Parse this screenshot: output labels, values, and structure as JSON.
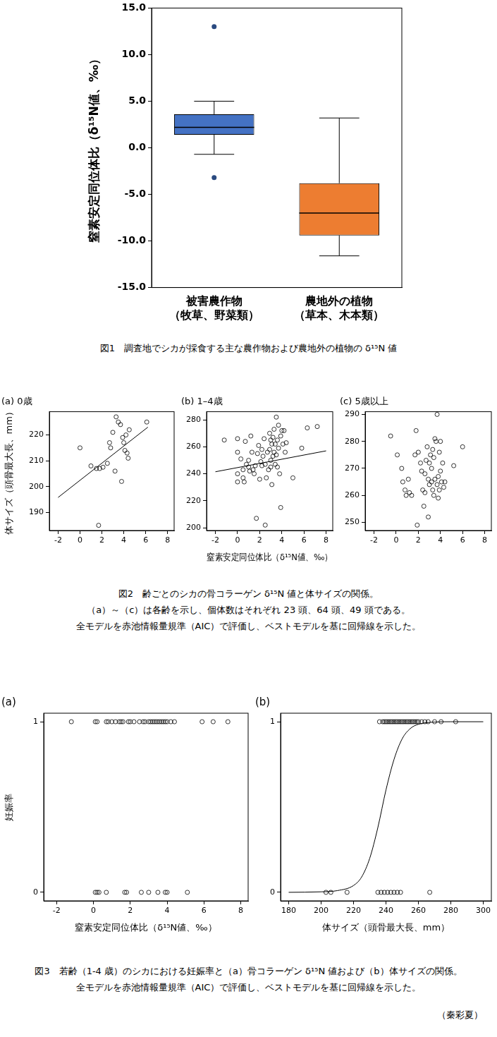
{
  "chart_data": [
    {
      "type": "box",
      "ylabel": "窒素安定同位体比（δ¹⁵N値、‰）",
      "categories": [
        [
          "被害農作物",
          "（牧草、野菜類）"
        ],
        [
          "農地外の植物",
          "（草本、木本類）"
        ]
      ],
      "boxes": [
        {
          "whislo": -0.7,
          "q1": 1.4,
          "median": 2.2,
          "q3": 3.6,
          "whishi": 5.0,
          "fliers": [
            13.0,
            -3.2
          ]
        },
        {
          "whislo": -11.6,
          "q1": -9.4,
          "median": -7.0,
          "q3": -3.8,
          "whishi": 3.2,
          "fliers": []
        }
      ],
      "colors": [
        "#4472c4",
        "#ed7d31"
      ],
      "ylim": [
        -15,
        15
      ],
      "yticks": [
        {
          "value": -15,
          "label": "-15.0"
        },
        {
          "value": -10,
          "label": "-10.0"
        },
        {
          "value": -5,
          "label": "-5.0"
        },
        {
          "value": 0,
          "label": "0.0"
        },
        {
          "value": 5,
          "label": "5.0"
        },
        {
          "value": 10,
          "label": "10.0"
        },
        {
          "value": 15,
          "label": "15.0"
        }
      ],
      "grid": false
    },
    {
      "type": "scatter",
      "title": "(a) 0歳",
      "ylabel": "体サイズ（頭骨最大長、mm）",
      "x": [
        0.0,
        1.0,
        1.5,
        1.7,
        1.8,
        2.1,
        2.5,
        2.7,
        2.8,
        3.0,
        3.2,
        3.3,
        3.5,
        3.7,
        3.8,
        3.9,
        4.0,
        4.1,
        4.2,
        4.3,
        4.4,
        4.5,
        6.1
      ],
      "values": [
        215,
        208,
        207,
        185,
        207,
        207.5,
        209,
        217,
        215,
        221,
        206,
        227,
        225,
        224,
        202,
        219,
        217,
        214,
        220,
        213,
        211,
        222,
        225
      ],
      "fit": {
        "x": [
          -2,
          6.2
        ],
        "values": [
          195.8,
          223.0
        ]
      },
      "color": "#000000",
      "marker": "circle",
      "xlim": [
        -2.8,
        8.6
      ],
      "xticks": [
        -2,
        0,
        2,
        4,
        6,
        8
      ],
      "ylim": [
        183,
        229
      ],
      "yticks": [
        190,
        200,
        210,
        220
      ],
      "grid": false
    },
    {
      "type": "scatter",
      "title": "(b) 1–4歳",
      "xlabel": "窒素安定同位体比（δ¹⁵N値、‰）",
      "x": [
        -1.2,
        0,
        0,
        0,
        0,
        0.3,
        0.5,
        0.5,
        0.6,
        0.7,
        0.8,
        1.0,
        1.0,
        1.1,
        1.2,
        1.3,
        1.4,
        1.5,
        1.6,
        1.7,
        1.8,
        1.9,
        2.0,
        2.1,
        2.2,
        2.3,
        2.4,
        2.5,
        2.5,
        2.6,
        2.7,
        2.8,
        2.9,
        2.9,
        3.0,
        3.0,
        3.1,
        3.1,
        3.2,
        3.2,
        3.3,
        3.3,
        3.4,
        3.4,
        3.5,
        3.5,
        3.6,
        3.6,
        3.7,
        3.7,
        3.8,
        3.9,
        3.9,
        4.0,
        4.1,
        4.2,
        4.3,
        4.4,
        5.0,
        5.8,
        6.3,
        7.2,
        3.0,
        2.2
      ],
      "values": [
        265,
        266,
        256,
        240,
        234,
        251,
        243,
        237,
        234,
        264,
        247,
        250,
        245,
        242,
        268,
        256,
        243,
        240,
        246,
        207,
        255,
        261,
        236,
        249,
        258,
        253,
        266,
        202,
        247,
        237,
        256,
        243,
        258,
        270,
        265,
        250,
        262,
        232,
        253,
        267,
        256,
        273,
        247,
        262,
        282,
        254,
        265,
        245,
        259,
        276,
        240,
        215,
        268,
        272,
        262,
        272,
        256,
        263,
        237,
        259,
        274,
        275,
        245,
        246
      ],
      "fit": {
        "x": [
          -2,
          8
        ],
        "values": [
          241.5,
          257.0
        ]
      },
      "color": "#000000",
      "marker": "circle",
      "xlim": [
        -2.8,
        8.6
      ],
      "xticks": [
        -2,
        0,
        2,
        4,
        6,
        8
      ],
      "ylim": [
        198,
        286
      ],
      "yticks": [
        200,
        220,
        240,
        260,
        280
      ],
      "grid": false
    },
    {
      "type": "scatter",
      "title": "(c) 5歳以上",
      "x": [
        -0.5,
        0.1,
        0.5,
        0.6,
        0.8,
        0.9,
        1.1,
        1.2,
        1.4,
        1.7,
        1.8,
        1.9,
        2.0,
        2.2,
        2.3,
        2.4,
        2.5,
        2.6,
        2.6,
        2.8,
        2.9,
        2.9,
        3.0,
        3.0,
        3.1,
        3.2,
        3.2,
        3.3,
        3.3,
        3.4,
        3.4,
        3.5,
        3.5,
        3.6,
        3.7,
        3.7,
        3.8,
        3.8,
        3.9,
        3.9,
        4.0,
        4.0,
        4.1,
        4.2,
        4.3,
        4.4,
        5.2,
        6.0,
        2.7
      ],
      "values": [
        282,
        275,
        270,
        265,
        262,
        260,
        266,
        261,
        260,
        275,
        284,
        249,
        276,
        272,
        269,
        262,
        256,
        261,
        268,
        278,
        252,
        266,
        264,
        272,
        275,
        265,
        270,
        277,
        262,
        274,
        260,
        281,
        266,
        280,
        290,
        264,
        267,
        259,
        276,
        262,
        280,
        269,
        265,
        272,
        263,
        265,
        271,
        278,
        273
      ],
      "color": "#000000",
      "marker": "circle",
      "xlim": [
        -2.8,
        8.6
      ],
      "xticks": [
        -2,
        0,
        2,
        4,
        6,
        8
      ],
      "ylim": [
        247,
        291
      ],
      "yticks": [
        250,
        260,
        270,
        280,
        290
      ],
      "grid": false
    },
    {
      "type": "scatter",
      "title": "(a)",
      "xlabel": "窒素安定同位体比（δ¹⁵N値、‰）",
      "ylabel": "妊娠率",
      "x": [
        -1.2,
        0.1,
        0.2,
        0.7,
        0.8,
        1.0,
        1.2,
        1.4,
        1.5,
        1.6,
        1.9,
        2.0,
        2.2,
        2.5,
        2.7,
        2.8,
        3.0,
        3.1,
        3.2,
        3.3,
        3.4,
        3.5,
        3.6,
        3.7,
        3.8,
        3.9,
        4.0,
        4.2,
        4.4,
        5.9,
        6.5,
        7.3,
        0.1,
        0.2,
        0.3,
        0.7,
        1.7,
        1.8,
        2.6,
        3.0,
        3.5,
        3.9,
        4.0,
        5.1
      ],
      "values": [
        1,
        1,
        1,
        1,
        1,
        1,
        1,
        1,
        1,
        1,
        1,
        1,
        1,
        1,
        1,
        1,
        1,
        1,
        1,
        1,
        1,
        1,
        1,
        1,
        1,
        1,
        1,
        1,
        1,
        1,
        1,
        1,
        0,
        0,
        0,
        0,
        0,
        0,
        0,
        0,
        0,
        0,
        0,
        0
      ],
      "color": "#000000",
      "marker": "circle",
      "xlim": [
        -2.7,
        8.4
      ],
      "xticks": [
        -2,
        0,
        2,
        4,
        6,
        8
      ],
      "ylim": [
        -0.05,
        1.05
      ],
      "yticks": [
        0,
        1
      ],
      "grid": false
    },
    {
      "type": "scatter",
      "title": "(b)",
      "xlabel": "体サイズ（頭骨最大長、mm）",
      "x": [
        236,
        238,
        239,
        240,
        241,
        242,
        243,
        244,
        245,
        246,
        247,
        248,
        249,
        250,
        251,
        252,
        253,
        254,
        255,
        256,
        257,
        258,
        259,
        260,
        262,
        264,
        266,
        270,
        274,
        283,
        203,
        206,
        216,
        235,
        237,
        239,
        241,
        243,
        245,
        247,
        249,
        267
      ],
      "values": [
        1,
        1,
        1,
        1,
        1,
        1,
        1,
        1,
        1,
        1,
        1,
        1,
        1,
        1,
        1,
        1,
        1,
        1,
        1,
        1,
        1,
        1,
        1,
        1,
        1,
        1,
        1,
        1,
        1,
        1,
        0,
        0,
        0,
        0,
        0,
        0,
        0,
        0,
        0,
        0,
        0,
        0
      ],
      "fit": {
        "x": [
          180,
          200,
          210,
          220,
          225,
          230,
          235,
          240,
          245,
          250,
          255,
          260,
          270,
          280,
          300
        ],
        "values": [
          0,
          0.003,
          0.01,
          0.04,
          0.09,
          0.2,
          0.38,
          0.6,
          0.78,
          0.9,
          0.96,
          0.985,
          0.998,
          1,
          1
        ]
      },
      "color": "#000000",
      "marker": "circle",
      "xlim": [
        175,
        305
      ],
      "xticks": [
        180,
        200,
        220,
        240,
        260,
        280,
        300
      ],
      "ylim": [
        -0.05,
        1.05
      ],
      "yticks": [
        0,
        1
      ],
      "grid": false
    }
  ],
  "captions": [
    [
      "図1　調査地でシカが採食する主な農作物および農地外の植物の δ¹⁵N 値"
    ],
    [
      "図2　齢ごとのシカの骨コラーゲン δ¹⁵N 値と体サイズの関係。",
      "（a）～（c）は各齢を示し、個体数はそれぞれ 23 頭、64 頭、49 頭である。",
      "全モデルを赤池情報量規準（AIC）で評価し、ベストモデルを基に回帰線を示した。"
    ],
    [
      "図3　若齢（1-4 歳）のシカにおける妊娠率と（a）骨コラーゲン δ¹⁵N 値および（b）体サイズの関係。",
      "全モデルを赤池情報量規準（AIC）で評価し、ベストモデルを基に回帰線を示した。"
    ]
  ],
  "credit": "（秦彩夏）"
}
